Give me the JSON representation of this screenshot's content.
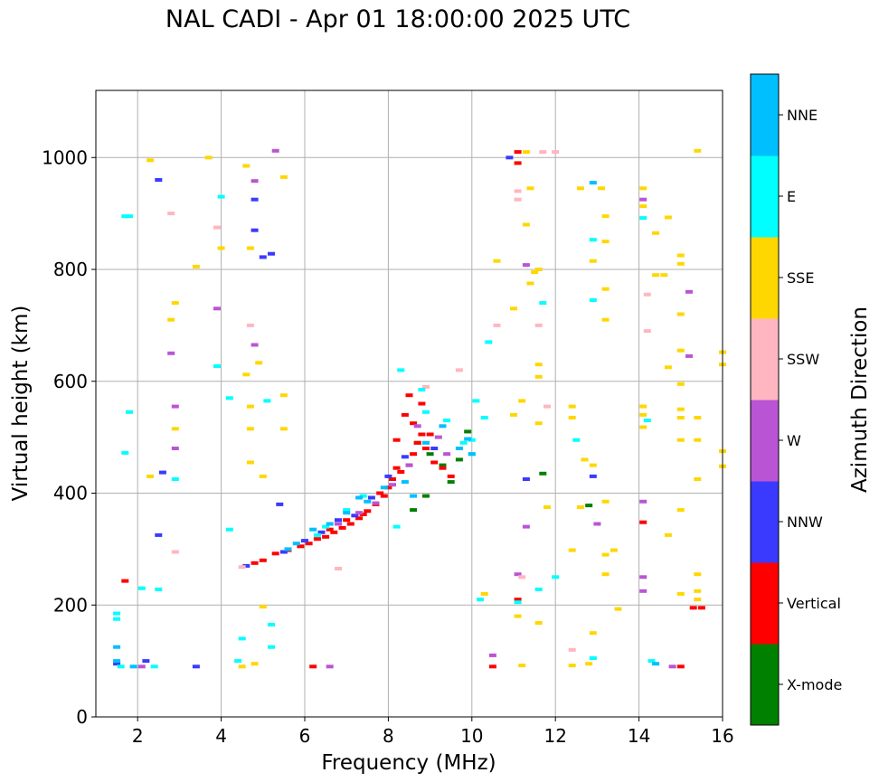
{
  "chart_data": {
    "type": "scatter",
    "title": "NAL CADI - Apr 01 18:00:00 2025 UTC",
    "xlabel": "Frequency (MHz)",
    "ylabel": "Virtual height (km)",
    "xlim": [
      1,
      16
    ],
    "ylim": [
      0,
      1120
    ],
    "xticks": [
      2,
      4,
      6,
      8,
      10,
      12,
      14,
      16
    ],
    "yticks": [
      0,
      200,
      400,
      600,
      800,
      1000
    ],
    "grid": true,
    "colorbar": {
      "label": "Azimuth Direction",
      "categories": [
        "X-mode",
        "Vertical",
        "NNW",
        "W",
        "SSW",
        "SSE",
        "E",
        "NNE"
      ],
      "colors": [
        "#008000",
        "#ff0000",
        "#3a3aff",
        "#b955d4",
        "#ffb6c1",
        "#ffd700",
        "#00ffff",
        "#00bfff"
      ]
    },
    "series": [
      {
        "name": "X-mode",
        "points": [
          [
            8.7,
            490
          ],
          [
            9.0,
            470
          ],
          [
            9.3,
            450
          ],
          [
            9.7,
            460
          ],
          [
            9.9,
            510
          ],
          [
            8.6,
            370
          ],
          [
            12.8,
            378
          ],
          [
            11.7,
            435
          ],
          [
            9.5,
            420
          ],
          [
            8.9,
            395
          ]
        ]
      },
      {
        "name": "Vertical",
        "points": [
          [
            4.8,
            275
          ],
          [
            5.0,
            280
          ],
          [
            5.3,
            292
          ],
          [
            5.6,
            298
          ],
          [
            5.9,
            305
          ],
          [
            6.1,
            310
          ],
          [
            6.3,
            318
          ],
          [
            6.5,
            322
          ],
          [
            6.7,
            330
          ],
          [
            6.9,
            338
          ],
          [
            7.1,
            345
          ],
          [
            7.3,
            355
          ],
          [
            7.5,
            368
          ],
          [
            7.7,
            380
          ],
          [
            7.9,
            395
          ],
          [
            8.0,
            410
          ],
          [
            8.1,
            425
          ],
          [
            8.3,
            438
          ],
          [
            8.5,
            450
          ],
          [
            8.6,
            470
          ],
          [
            8.7,
            490
          ],
          [
            8.8,
            505
          ],
          [
            8.6,
            525
          ],
          [
            8.4,
            540
          ],
          [
            8.9,
            480
          ],
          [
            9.1,
            455
          ],
          [
            9.3,
            445
          ],
          [
            9.5,
            430
          ],
          [
            6.6,
            335
          ],
          [
            7.0,
            352
          ],
          [
            7.4,
            362
          ],
          [
            7.8,
            400
          ],
          [
            8.2,
            445
          ],
          [
            1.7,
            243
          ],
          [
            11.1,
            1010
          ],
          [
            11.1,
            990
          ],
          [
            14.1,
            348
          ],
          [
            15.3,
            195
          ],
          [
            15.5,
            195
          ],
          [
            6.2,
            90
          ],
          [
            10.5,
            90
          ],
          [
            15.0,
            90
          ],
          [
            8.8,
            560
          ],
          [
            8.5,
            575
          ],
          [
            8.2,
            495
          ],
          [
            9.0,
            505
          ],
          [
            11.1,
            210
          ]
        ]
      },
      {
        "name": "NNW",
        "points": [
          [
            5.2,
            828
          ],
          [
            5.0,
            822
          ],
          [
            4.8,
            925
          ],
          [
            4.8,
            870
          ],
          [
            4.6,
            270
          ],
          [
            5.4,
            380
          ],
          [
            2.5,
            960
          ],
          [
            3.4,
            90
          ],
          [
            5.5,
            295
          ],
          [
            6.0,
            315
          ],
          [
            6.4,
            330
          ],
          [
            6.8,
            352
          ],
          [
            7.2,
            360
          ],
          [
            7.6,
            392
          ],
          [
            8.0,
            430
          ],
          [
            8.4,
            465
          ],
          [
            9.1,
            480
          ],
          [
            11.3,
            425
          ],
          [
            12.9,
            430
          ],
          [
            2.6,
            437
          ],
          [
            2.5,
            325
          ],
          [
            1.5,
            95
          ],
          [
            2.2,
            100
          ],
          [
            10.9,
            1000
          ]
        ]
      },
      {
        "name": "W",
        "points": [
          [
            4.8,
            958
          ],
          [
            4.8,
            665
          ],
          [
            3.9,
            730
          ],
          [
            2.8,
            650
          ],
          [
            2.9,
            555
          ],
          [
            2.9,
            480
          ],
          [
            5.3,
            1012
          ],
          [
            6.8,
            345
          ],
          [
            7.3,
            365
          ],
          [
            7.7,
            382
          ],
          [
            8.1,
            415
          ],
          [
            8.5,
            450
          ],
          [
            8.7,
            520
          ],
          [
            9.2,
            500
          ],
          [
            9.4,
            470
          ],
          [
            14.1,
            925
          ],
          [
            14.1,
            385
          ],
          [
            14.1,
            225
          ],
          [
            14.1,
            250
          ],
          [
            15.2,
            760
          ],
          [
            15.2,
            645
          ],
          [
            11.3,
            808
          ],
          [
            11.3,
            340
          ],
          [
            13.0,
            345
          ],
          [
            6.6,
            90
          ],
          [
            14.8,
            90
          ],
          [
            10.5,
            110
          ],
          [
            2.1,
            90
          ],
          [
            11.1,
            255
          ]
        ]
      },
      {
        "name": "SSW",
        "points": [
          [
            11.1,
            940
          ],
          [
            11.1,
            925
          ],
          [
            11.7,
            1010
          ],
          [
            10.6,
            700
          ],
          [
            11.6,
            700
          ],
          [
            11.8,
            555
          ],
          [
            14.2,
            755
          ],
          [
            14.2,
            690
          ],
          [
            12.4,
            120
          ],
          [
            2.9,
            295
          ],
          [
            6.8,
            265
          ],
          [
            4.7,
            700
          ],
          [
            2.8,
            900
          ],
          [
            3.9,
            875
          ],
          [
            8.9,
            590
          ],
          [
            9.7,
            620
          ],
          [
            4.5,
            268
          ],
          [
            11.2,
            250
          ],
          [
            12.0,
            1010
          ]
        ]
      },
      {
        "name": "SSE",
        "points": [
          [
            2.3,
            995
          ],
          [
            4.6,
            985
          ],
          [
            5.5,
            965
          ],
          [
            3.7,
            1000
          ],
          [
            4.0,
            838
          ],
          [
            3.4,
            805
          ],
          [
            4.7,
            838
          ],
          [
            2.9,
            740
          ],
          [
            2.8,
            710
          ],
          [
            4.6,
            612
          ],
          [
            4.9,
            633
          ],
          [
            5.5,
            575
          ],
          [
            4.7,
            555
          ],
          [
            4.7,
            515
          ],
          [
            5.5,
            515
          ],
          [
            2.9,
            515
          ],
          [
            2.3,
            430
          ],
          [
            5.0,
            430
          ],
          [
            4.7,
            455
          ],
          [
            12.9,
            815
          ],
          [
            12.6,
            945
          ],
          [
            13.1,
            945
          ],
          [
            13.2,
            895
          ],
          [
            13.2,
            850
          ],
          [
            13.2,
            765
          ],
          [
            13.2,
            710
          ],
          [
            12.4,
            555
          ],
          [
            12.4,
            535
          ],
          [
            12.7,
            460
          ],
          [
            12.9,
            450
          ],
          [
            13.2,
            385
          ],
          [
            13.2,
            290
          ],
          [
            13.4,
            298
          ],
          [
            13.2,
            255
          ],
          [
            12.4,
            298
          ],
          [
            12.6,
            375
          ],
          [
            14.1,
            945
          ],
          [
            14.1,
            913
          ],
          [
            14.4,
            865
          ],
          [
            14.7,
            893
          ],
          [
            14.4,
            790
          ],
          [
            14.6,
            790
          ],
          [
            15.0,
            825
          ],
          [
            15.0,
            810
          ],
          [
            15.0,
            720
          ],
          [
            14.7,
            625
          ],
          [
            15.0,
            655
          ],
          [
            15.0,
            595
          ],
          [
            14.1,
            555
          ],
          [
            14.1,
            540
          ],
          [
            14.1,
            518
          ],
          [
            15.0,
            550
          ],
          [
            15.0,
            535
          ],
          [
            15.4,
            535
          ],
          [
            15.0,
            495
          ],
          [
            15.4,
            495
          ],
          [
            16.0,
            475
          ],
          [
            15.4,
            425
          ],
          [
            16.0,
            448
          ],
          [
            15.0,
            370
          ],
          [
            14.7,
            325
          ],
          [
            15.4,
            255
          ],
          [
            15.4,
            225
          ],
          [
            15.4,
            210
          ],
          [
            15.0,
            220
          ],
          [
            16.0,
            652
          ],
          [
            16.0,
            630
          ],
          [
            13.5,
            193
          ],
          [
            15.4,
            1012
          ],
          [
            10.6,
            815
          ],
          [
            11.0,
            730
          ],
          [
            11.6,
            800
          ],
          [
            11.5,
            795
          ],
          [
            11.6,
            630
          ],
          [
            11.6,
            608
          ],
          [
            11.0,
            540
          ],
          [
            11.2,
            565
          ],
          [
            11.6,
            525
          ],
          [
            11.1,
            180
          ],
          [
            11.6,
            168
          ],
          [
            11.2,
            92
          ],
          [
            10.3,
            220
          ],
          [
            12.4,
            92
          ],
          [
            12.8,
            95
          ],
          [
            4.8,
            95
          ],
          [
            5.0,
            197
          ],
          [
            4.5,
            90
          ],
          [
            11.3,
            1010
          ],
          [
            11.4,
            945
          ],
          [
            11.3,
            880
          ],
          [
            11.4,
            775
          ],
          [
            11.8,
            375
          ],
          [
            12.9,
            150
          ]
        ]
      },
      {
        "name": "E",
        "points": [
          [
            4.0,
            930
          ],
          [
            3.9,
            627
          ],
          [
            4.2,
            570
          ],
          [
            4.2,
            335
          ],
          [
            4.5,
            140
          ],
          [
            4.4,
            100
          ],
          [
            5.1,
            565
          ],
          [
            5.2,
            125
          ],
          [
            5.2,
            165
          ],
          [
            1.7,
            895
          ],
          [
            1.8,
            895
          ],
          [
            2.1,
            230
          ],
          [
            2.5,
            228
          ],
          [
            2.9,
            425
          ],
          [
            1.8,
            545
          ],
          [
            1.5,
            185
          ],
          [
            1.5,
            175
          ],
          [
            10.4,
            670
          ],
          [
            10.1,
            565
          ],
          [
            10.3,
            535
          ],
          [
            10.0,
            495
          ],
          [
            10.0,
            470
          ],
          [
            8.2,
            340
          ],
          [
            12.5,
            495
          ],
          [
            12.9,
            745
          ],
          [
            12.9,
            853
          ],
          [
            11.6,
            228
          ],
          [
            12.0,
            250
          ],
          [
            14.1,
            892
          ],
          [
            14.2,
            530
          ],
          [
            12.9,
            105
          ],
          [
            14.3,
            100
          ],
          [
            8.3,
            620
          ],
          [
            8.8,
            585
          ],
          [
            8.9,
            545
          ],
          [
            9.4,
            530
          ],
          [
            9.8,
            490
          ],
          [
            7.4,
            395
          ],
          [
            7.0,
            370
          ],
          [
            6.5,
            340
          ],
          [
            6.3,
            325
          ],
          [
            1.6,
            90
          ],
          [
            2.4,
            90
          ],
          [
            1.7,
            472
          ],
          [
            11.7,
            740
          ],
          [
            10.2,
            210
          ],
          [
            11.1,
            205
          ]
        ]
      },
      {
        "name": "NNE",
        "points": [
          [
            6.2,
            335
          ],
          [
            6.6,
            345
          ],
          [
            7.0,
            365
          ],
          [
            7.5,
            385
          ],
          [
            7.9,
            410
          ],
          [
            8.4,
            420
          ],
          [
            8.9,
            490
          ],
          [
            9.3,
            520
          ],
          [
            9.7,
            480
          ],
          [
            10.0,
            470
          ],
          [
            12.9,
            955
          ],
          [
            14.4,
            95
          ],
          [
            1.5,
            125
          ],
          [
            1.5,
            100
          ],
          [
            5.6,
            300
          ],
          [
            5.8,
            310
          ],
          [
            7.3,
            392
          ],
          [
            8.6,
            395
          ],
          [
            9.9,
            497
          ],
          [
            1.9,
            90
          ]
        ]
      }
    ]
  }
}
